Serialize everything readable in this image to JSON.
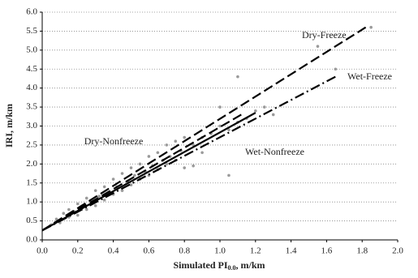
{
  "chart_data": {
    "type": "scatter",
    "x_label": {
      "main": "Simulated PI",
      "sub": "0.0",
      "unit": ", m/km"
    },
    "y_label": "IRI, m/km",
    "xlim": [
      0,
      2
    ],
    "ylim": [
      0,
      6
    ],
    "xticks": [
      {
        "value": 0,
        "label": "0.0"
      },
      0.2,
      0.4,
      0.6,
      0.8,
      {
        "value": 1,
        "label": "1.0"
      },
      1.2,
      1.4,
      1.6,
      1.8,
      {
        "value": 2,
        "label": "2.0"
      }
    ],
    "yticks": [
      {
        "value": 0,
        "label": "0.0"
      },
      0.5,
      {
        "value": 1,
        "label": "1.0"
      },
      1.5,
      {
        "value": 2,
        "label": "2.0"
      },
      2.5,
      {
        "value": 3,
        "label": "3.0"
      },
      3.5,
      {
        "value": 4,
        "label": "4.0"
      },
      4.5,
      {
        "value": 5,
        "label": "5.0"
      },
      5.5,
      {
        "value": 6,
        "label": "6.0"
      }
    ],
    "grid": true,
    "points": {
      "color": "#9a9a9a",
      "x": [
        0.05,
        0.08,
        0.1,
        0.12,
        0.15,
        0.15,
        0.18,
        0.2,
        0.2,
        0.22,
        0.25,
        0.25,
        0.28,
        0.3,
        0.3,
        0.32,
        0.35,
        0.35,
        0.38,
        0.4,
        0.4,
        0.42,
        0.45,
        0.45,
        0.48,
        0.5,
        0.5,
        0.52,
        0.55,
        0.55,
        0.58,
        0.6,
        0.6,
        0.62,
        0.65,
        0.65,
        0.68,
        0.7,
        0.7,
        0.72,
        0.75,
        0.75,
        0.78,
        0.8,
        0.8,
        0.85,
        0.85,
        0.9,
        0.9,
        0.95,
        1.0,
        1.0,
        1.05,
        1.1,
        1.1,
        1.05,
        1.15,
        1.2,
        1.25,
        1.3,
        1.55,
        1.65,
        1.85
      ],
      "values": [
        0.4,
        0.55,
        0.45,
        0.7,
        0.6,
        0.8,
        0.75,
        0.65,
        0.95,
        0.85,
        0.8,
        1.1,
        1.0,
        0.9,
        1.3,
        1.15,
        1.05,
        1.4,
        1.25,
        1.2,
        1.6,
        1.4,
        1.3,
        1.75,
        1.55,
        1.45,
        1.9,
        1.7,
        1.6,
        2.0,
        1.8,
        1.7,
        2.2,
        1.95,
        1.85,
        2.3,
        2.1,
        2.0,
        2.5,
        2.2,
        2.1,
        2.6,
        2.35,
        1.9,
        2.7,
        2.5,
        1.95,
        2.7,
        2.3,
        2.8,
        3.0,
        3.5,
        2.9,
        3.1,
        4.3,
        1.7,
        3.2,
        3.4,
        3.5,
        3.3,
        5.1,
        4.5,
        5.6
      ]
    },
    "series": [
      {
        "name": "Dry-Freeze",
        "color": "#000000",
        "style": "dashed",
        "x": [
          0,
          1.82
        ],
        "values": [
          0.25,
          5.6
        ]
      },
      {
        "name": "Wet-Freeze",
        "color": "#000000",
        "style": "dash-dot",
        "x": [
          0,
          1.65
        ],
        "values": [
          0.25,
          4.3
        ]
      },
      {
        "name": "Dry-Nonfreeze",
        "color": "#000000",
        "style": "dashed",
        "x": [
          0,
          1.12
        ],
        "values": [
          0.25,
          3.3
        ]
      },
      {
        "name": "Wet-Nonfreeze",
        "color": "#000000",
        "style": "solid",
        "x": [
          0,
          1.2
        ],
        "values": [
          0.25,
          3.35
        ]
      }
    ]
  }
}
